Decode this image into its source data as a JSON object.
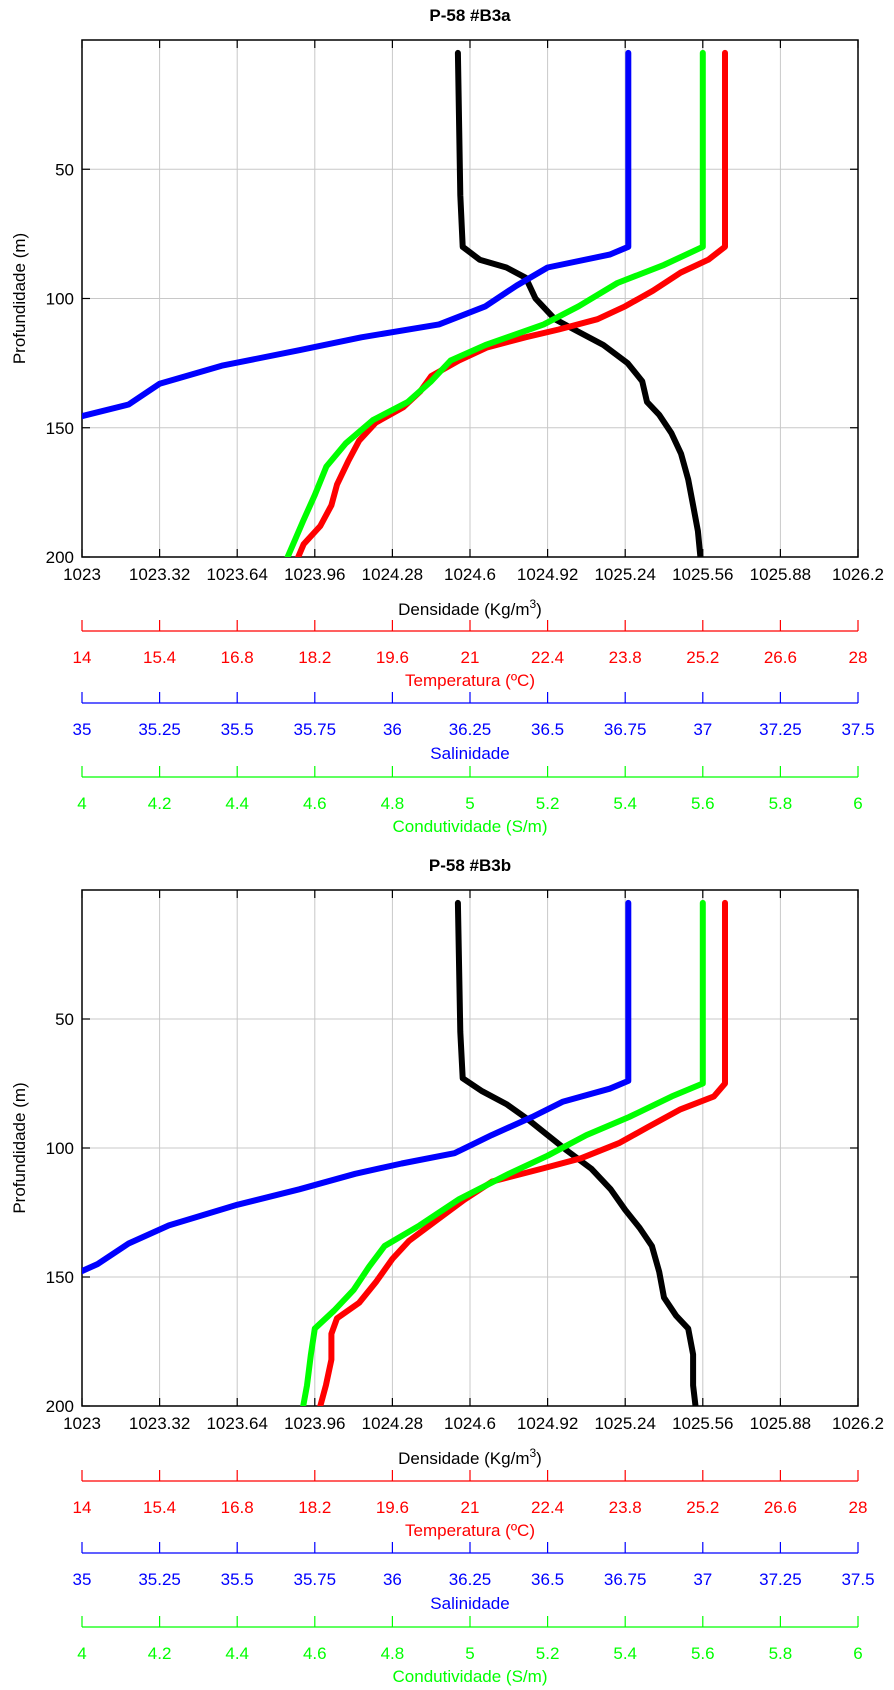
{
  "chart_data": [
    {
      "type": "line",
      "title": "P-58 #B3a",
      "ylabel": "Profundidade (m)",
      "ylim": [
        200,
        0
      ],
      "yticks": [
        50,
        100,
        150,
        200
      ],
      "grid": true,
      "axes": [
        {
          "key": "dens",
          "label": "Densidade (Kg/m",
          "label_sup": "3",
          "label_end": ")",
          "color": "#000000",
          "min": 1023,
          "max": 1026.2,
          "ticks": [
            "1023",
            "1023.32",
            "1023.64",
            "1023.96",
            "1024.28",
            "1024.6",
            "1024.92",
            "1025.24",
            "1025.56",
            "1025.88",
            "1026.2"
          ]
        },
        {
          "key": "temp",
          "label": "Temperatura (ºC)",
          "color": "#ff0000",
          "min": 14,
          "max": 28,
          "ticks": [
            "14",
            "15.4",
            "16.8",
            "18.2",
            "19.6",
            "21",
            "22.4",
            "23.8",
            "25.2",
            "26.6",
            "28"
          ]
        },
        {
          "key": "sal",
          "label": "Salinidade",
          "color": "#0000ff",
          "min": 35,
          "max": 37.5,
          "ticks": [
            "35",
            "35.25",
            "35.5",
            "35.75",
            "36",
            "36.25",
            "36.5",
            "36.75",
            "37",
            "37.25",
            "37.5"
          ]
        },
        {
          "key": "cond",
          "label": "Condutividade (S/m)",
          "color": "#00ff00",
          "min": 4,
          "max": 6,
          "ticks": [
            "4",
            "4.2",
            "4.4",
            "4.6",
            "4.8",
            "5",
            "5.2",
            "5.4",
            "5.6",
            "5.8",
            "6"
          ]
        }
      ],
      "series": [
        {
          "axis": "dens",
          "color": "#000000",
          "points": [
            [
              1024.55,
              5
            ],
            [
              1024.56,
              60
            ],
            [
              1024.57,
              80
            ],
            [
              1024.64,
              85
            ],
            [
              1024.75,
              88
            ],
            [
              1024.83,
              92
            ],
            [
              1024.87,
              100
            ],
            [
              1024.95,
              108
            ],
            [
              1025.05,
              113
            ],
            [
              1025.15,
              118
            ],
            [
              1025.25,
              125
            ],
            [
              1025.31,
              132
            ],
            [
              1025.33,
              140
            ],
            [
              1025.38,
              145
            ],
            [
              1025.43,
              152
            ],
            [
              1025.47,
              160
            ],
            [
              1025.5,
              170
            ],
            [
              1025.52,
              180
            ],
            [
              1025.54,
              190
            ],
            [
              1025.55,
              200
            ]
          ]
        },
        {
          "axis": "temp",
          "color": "#ff0000",
          "points": [
            [
              25.6,
              5
            ],
            [
              25.6,
              80
            ],
            [
              25.3,
              85
            ],
            [
              24.8,
              90
            ],
            [
              24.3,
              97
            ],
            [
              23.8,
              103
            ],
            [
              23.3,
              108
            ],
            [
              22.6,
              112
            ],
            [
              22.0,
              115
            ],
            [
              21.3,
              119
            ],
            [
              20.8,
              124
            ],
            [
              20.3,
              130
            ],
            [
              20.1,
              136
            ],
            [
              19.8,
              142
            ],
            [
              19.3,
              148
            ],
            [
              19.0,
              155
            ],
            [
              18.8,
              163
            ],
            [
              18.6,
              172
            ],
            [
              18.5,
              180
            ],
            [
              18.3,
              188
            ],
            [
              18.0,
              195
            ],
            [
              17.9,
              200
            ]
          ]
        },
        {
          "axis": "sal",
          "color": "#0000ff",
          "points": [
            [
              36.76,
              5
            ],
            [
              36.76,
              80
            ],
            [
              36.7,
              83
            ],
            [
              36.5,
              88
            ],
            [
              36.4,
              95
            ],
            [
              36.3,
              103
            ],
            [
              36.15,
              110
            ],
            [
              35.9,
              115
            ],
            [
              35.7,
              120
            ],
            [
              35.45,
              126
            ],
            [
              35.25,
              133
            ],
            [
              35.15,
              141
            ],
            [
              34.95,
              147
            ],
            [
              34.85,
              155
            ],
            [
              34.75,
              160
            ],
            [
              34.62,
              168
            ],
            [
              34.52,
              178
            ],
            [
              34.42,
              186
            ],
            [
              34.38,
              192
            ],
            [
              34.35,
              200
            ]
          ]
        },
        {
          "axis": "cond",
          "color": "#00ff00",
          "points": [
            [
              5.6,
              5
            ],
            [
              5.6,
              80
            ],
            [
              5.5,
              87
            ],
            [
              5.38,
              94
            ],
            [
              5.28,
              103
            ],
            [
              5.19,
              110
            ],
            [
              5.04,
              118
            ],
            [
              4.95,
              124
            ],
            [
              4.9,
              132
            ],
            [
              4.84,
              140
            ],
            [
              4.75,
              147
            ],
            [
              4.68,
              156
            ],
            [
              4.63,
              165
            ],
            [
              4.6,
              176
            ],
            [
              4.57,
              186
            ],
            [
              4.55,
              193
            ],
            [
              4.53,
              200
            ]
          ]
        }
      ]
    },
    {
      "type": "line",
      "title": "P-58 #B3b",
      "ylabel": "Profundidade (m)",
      "ylim": [
        200,
        0
      ],
      "yticks": [
        50,
        100,
        150,
        200
      ],
      "grid": true,
      "axes": [
        {
          "key": "dens",
          "label": "Densidade (Kg/m",
          "label_sup": "3",
          "label_end": ")",
          "color": "#000000",
          "min": 1023,
          "max": 1026.2,
          "ticks": [
            "1023",
            "1023.32",
            "1023.64",
            "1023.96",
            "1024.28",
            "1024.6",
            "1024.92",
            "1025.24",
            "1025.56",
            "1025.88",
            "1026.2"
          ]
        },
        {
          "key": "temp",
          "label": "Temperatura (ºC)",
          "color": "#ff0000",
          "min": 14,
          "max": 28,
          "ticks": [
            "14",
            "15.4",
            "16.8",
            "18.2",
            "19.6",
            "21",
            "22.4",
            "23.8",
            "25.2",
            "26.6",
            "28"
          ]
        },
        {
          "key": "sal",
          "label": "Salinidade",
          "color": "#0000ff",
          "min": 35,
          "max": 37.5,
          "ticks": [
            "35",
            "35.25",
            "35.5",
            "35.75",
            "36",
            "36.25",
            "36.5",
            "36.75",
            "37",
            "37.25",
            "37.5"
          ]
        },
        {
          "key": "cond",
          "label": "Condutividade (S/m)",
          "color": "#00ff00",
          "min": 4,
          "max": 6,
          "ticks": [
            "4",
            "4.2",
            "4.4",
            "4.6",
            "4.8",
            "5",
            "5.2",
            "5.4",
            "5.6",
            "5.8",
            "6"
          ]
        }
      ],
      "series": [
        {
          "axis": "dens",
          "color": "#000000",
          "points": [
            [
              1024.55,
              5
            ],
            [
              1024.56,
              55
            ],
            [
              1024.57,
              73
            ],
            [
              1024.65,
              78
            ],
            [
              1024.75,
              83
            ],
            [
              1024.84,
              89
            ],
            [
              1024.92,
              95
            ],
            [
              1025.0,
              101
            ],
            [
              1025.1,
              108
            ],
            [
              1025.18,
              116
            ],
            [
              1025.24,
              124
            ],
            [
              1025.3,
              131
            ],
            [
              1025.35,
              138
            ],
            [
              1025.38,
              148
            ],
            [
              1025.4,
              158
            ],
            [
              1025.45,
              165
            ],
            [
              1025.5,
              170
            ],
            [
              1025.52,
              180
            ],
            [
              1025.52,
              192
            ],
            [
              1025.53,
              200
            ]
          ]
        },
        {
          "axis": "temp",
          "color": "#ff0000",
          "points": [
            [
              25.6,
              5
            ],
            [
              25.6,
              75
            ],
            [
              25.4,
              80
            ],
            [
              24.8,
              85
            ],
            [
              24.2,
              92
            ],
            [
              23.7,
              98
            ],
            [
              23.0,
              104
            ],
            [
              22.3,
              108
            ],
            [
              21.4,
              113
            ],
            [
              20.9,
              120
            ],
            [
              20.4,
              128
            ],
            [
              19.9,
              136
            ],
            [
              19.6,
              143
            ],
            [
              19.3,
              152
            ],
            [
              19.0,
              160
            ],
            [
              18.6,
              166
            ],
            [
              18.5,
              172
            ],
            [
              18.5,
              182
            ],
            [
              18.4,
              192
            ],
            [
              18.3,
              200
            ]
          ]
        },
        {
          "axis": "sal",
          "color": "#0000ff",
          "points": [
            [
              36.76,
              5
            ],
            [
              36.76,
              74
            ],
            [
              36.7,
              77
            ],
            [
              36.55,
              82
            ],
            [
              36.45,
              88
            ],
            [
              36.32,
              95
            ],
            [
              36.2,
              102
            ],
            [
              36.03,
              106
            ],
            [
              35.88,
              110
            ],
            [
              35.7,
              116
            ],
            [
              35.5,
              122
            ],
            [
              35.28,
              130
            ],
            [
              35.15,
              137
            ],
            [
              35.05,
              145
            ],
            [
              34.92,
              152
            ],
            [
              34.8,
              158
            ],
            [
              34.65,
              165
            ],
            [
              34.55,
              169
            ],
            [
              34.53,
              180
            ],
            [
              34.5,
              192
            ],
            [
              34.48,
              200
            ]
          ]
        },
        {
          "axis": "cond",
          "color": "#00ff00",
          "points": [
            [
              5.6,
              5
            ],
            [
              5.6,
              75
            ],
            [
              5.52,
              80
            ],
            [
              5.41,
              88
            ],
            [
              5.3,
              95
            ],
            [
              5.2,
              103
            ],
            [
              5.1,
              110
            ],
            [
              4.97,
              120
            ],
            [
              4.87,
              130
            ],
            [
              4.78,
              138
            ],
            [
              4.74,
              146
            ],
            [
              4.7,
              155
            ],
            [
              4.65,
              163
            ],
            [
              4.6,
              170
            ],
            [
              4.59,
              180
            ],
            [
              4.58,
              192
            ],
            [
              4.57,
              200
            ]
          ]
        }
      ]
    }
  ]
}
